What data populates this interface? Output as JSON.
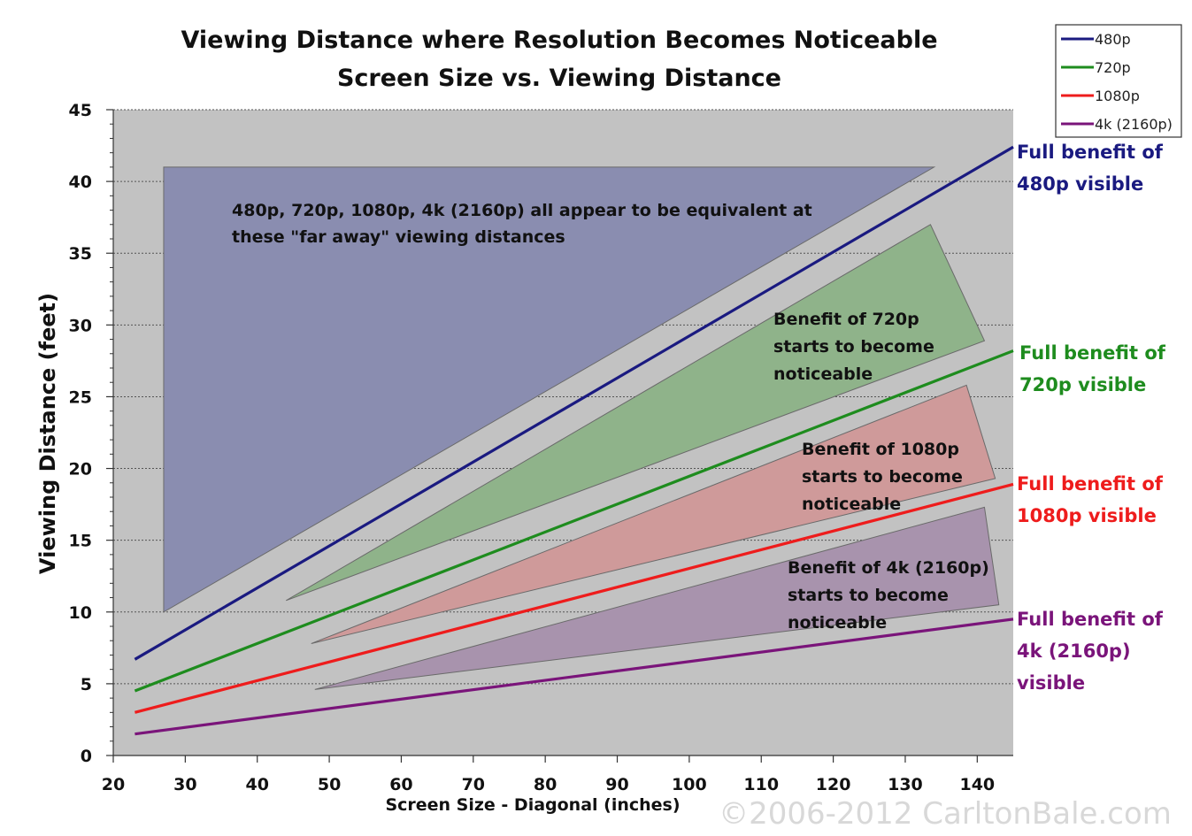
{
  "chart_data": {
    "type": "line",
    "title": "Viewing Distance where Resolution Becomes Noticeable",
    "subtitle": "Screen Size vs. Viewing Distance",
    "xlabel": "Screen Size - Diagonal (inches)",
    "ylabel": "Viewing Distance (feet)",
    "xlim": [
      20,
      145
    ],
    "ylim": [
      0,
      45
    ],
    "xticks": [
      20,
      30,
      40,
      50,
      60,
      70,
      80,
      90,
      100,
      110,
      120,
      130,
      140
    ],
    "yticks": [
      0,
      5,
      10,
      15,
      20,
      25,
      30,
      35,
      40,
      45
    ],
    "grid": "horizontal-dotted",
    "legend_position": "top-right",
    "series": [
      {
        "name": "480p",
        "color": "#1a1a80",
        "x": [
          23,
          145
        ],
        "y": [
          6.7,
          42.4
        ]
      },
      {
        "name": "720p",
        "color": "#1e8c1e",
        "x": [
          23,
          145
        ],
        "y": [
          4.5,
          28.2
        ]
      },
      {
        "name": "1080p",
        "color": "#ee1c1c",
        "x": [
          23,
          145
        ],
        "y": [
          3.0,
          18.9
        ]
      },
      {
        "name": "4k (2160p)",
        "color": "#7a147a",
        "x": [
          23,
          145
        ],
        "y": [
          1.5,
          9.5
        ]
      }
    ],
    "regions": [
      {
        "name": "far",
        "fill": "#8a8db0",
        "label": [
          "480p, 720p, 1080p, 4k (2160p) all appear to be equivalent at",
          "these \"far away\" viewing distances"
        ],
        "points": [
          [
            27,
            41
          ],
          [
            134,
            41
          ],
          [
            27,
            10
          ]
        ]
      },
      {
        "name": "720p",
        "fill": "#8fb38a",
        "label": [
          "Benefit of 720p",
          "starts to become",
          "noticeable"
        ],
        "points": [
          [
            44,
            10.8
          ],
          [
            133.5,
            37
          ],
          [
            141,
            28.9
          ]
        ]
      },
      {
        "name": "1080p",
        "fill": "#cf9a9a",
        "label": [
          "Benefit of 1080p",
          "starts to become",
          "noticeable"
        ],
        "points": [
          [
            47.5,
            7.8
          ],
          [
            138.5,
            25.8
          ],
          [
            142.5,
            19.3
          ]
        ]
      },
      {
        "name": "4k",
        "fill": "#a893ad",
        "label": [
          "Benefit of 4k (2160p)",
          "starts to become",
          "noticeable"
        ],
        "points": [
          [
            48,
            4.6
          ],
          [
            141,
            17.3
          ],
          [
            143,
            10.5
          ]
        ]
      }
    ],
    "side_labels": [
      {
        "series": "480p",
        "lines": [
          "Full benefit of",
          "480p visible"
        ]
      },
      {
        "series": "720p",
        "lines": [
          "Full benefit of",
          "720p visible"
        ]
      },
      {
        "series": "1080p",
        "lines": [
          "Full benefit of",
          "1080p visible"
        ]
      },
      {
        "series": "4k (2160p)",
        "lines": [
          "Full benefit of",
          "4k (2160p)",
          "visible"
        ]
      }
    ]
  },
  "watermark": "©2006-2012 CarltonBale.com",
  "colors": {
    "plot_bg": "#c2c2c2",
    "text": "#111111"
  }
}
